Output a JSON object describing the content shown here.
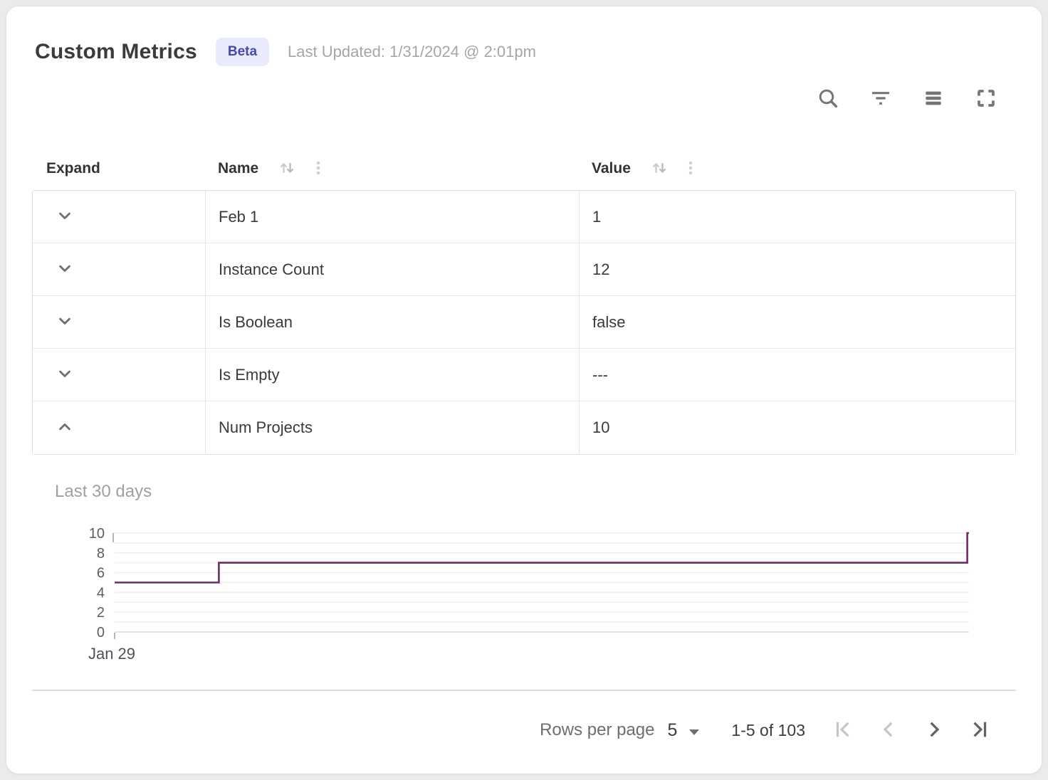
{
  "header": {
    "title": "Custom Metrics",
    "badge": "Beta",
    "last_updated": "Last Updated: 1/31/2024 @ 2:01pm"
  },
  "toolbar": {
    "icons": [
      "search-icon",
      "filter-icon",
      "density-icon",
      "fullscreen-icon"
    ]
  },
  "table": {
    "columns": [
      {
        "label": "Expand",
        "sortable": false
      },
      {
        "label": "Name",
        "sortable": true
      },
      {
        "label": "Value",
        "sortable": true
      }
    ],
    "rows": [
      {
        "name": "Feb 1",
        "value": "1",
        "expanded": false
      },
      {
        "name": "Instance Count",
        "value": "12",
        "expanded": false
      },
      {
        "name": "Is Boolean",
        "value": "false",
        "expanded": false
      },
      {
        "name": "Is Empty",
        "value": "---",
        "expanded": false
      },
      {
        "name": "Num Projects",
        "value": "10",
        "expanded": true
      }
    ]
  },
  "chart_data": {
    "type": "line",
    "line_shape": "step-after",
    "title": "Last 30 days",
    "series": [
      {
        "name": "Num Projects",
        "points": [
          {
            "x": 0.0,
            "y": 5
          },
          {
            "x": 0.122,
            "y": 5
          },
          {
            "x": 0.122,
            "y": 7
          },
          {
            "x": 0.998,
            "y": 7
          },
          {
            "x": 0.998,
            "y": 10
          },
          {
            "x": 1.0,
            "y": 10
          }
        ]
      }
    ],
    "x_unit": "fraction of 30-day window",
    "x_tick_labels": [
      "Jan 29"
    ],
    "ylim": [
      0,
      10
    ],
    "yticks": [
      0,
      2,
      4,
      6,
      8,
      10
    ],
    "grid": "horizontal, every 1 unit",
    "legend": "none",
    "line_color": "#6D2C63"
  },
  "pagination": {
    "rows_per_page_label": "Rows per page",
    "rows_per_page_value": "5",
    "range_label": "1-5 of 103",
    "buttons": [
      {
        "name": "first-page",
        "enabled": false
      },
      {
        "name": "previous-page",
        "enabled": false
      },
      {
        "name": "next-page",
        "enabled": true
      },
      {
        "name": "last-page",
        "enabled": true
      }
    ]
  },
  "colors": {
    "accent_badge_bg": "#E9EAFB",
    "accent_badge_text": "#4549AD",
    "chart_line": "#6D2C63",
    "border": "#E1E1E1"
  }
}
